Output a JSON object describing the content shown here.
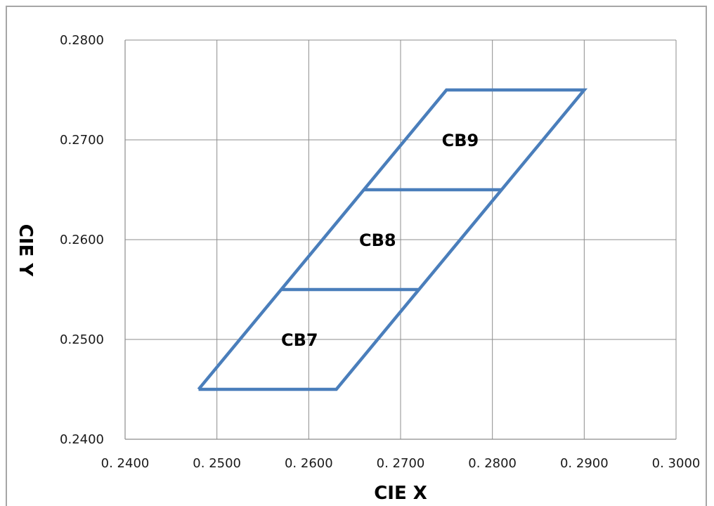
{
  "chart_data": {
    "type": "line",
    "xlabel": "CIE X",
    "ylabel": "CIE Y",
    "xlim": [
      0.24,
      0.3
    ],
    "ylim": [
      0.24,
      0.28
    ],
    "x_ticks": [
      0.24,
      0.25,
      0.26,
      0.27,
      0.28,
      0.29,
      0.3
    ],
    "x_tick_labels": [
      "0.2400",
      "0.2500",
      "0.2600",
      "0.2700",
      "0.2800",
      "0.2900",
      "0.3000"
    ],
    "y_ticks": [
      0.24,
      0.25,
      0.26,
      0.27,
      0.28
    ],
    "y_tick_labels": [
      "0.2400",
      "0.2500",
      "0.2600",
      "0.2700",
      "0.2800"
    ],
    "grid": true,
    "line_color": "#4a7ebb",
    "series": [
      {
        "points": [
          [
            0.248,
            0.245
          ],
          [
            0.263,
            0.245
          ],
          [
            0.29,
            0.275
          ],
          [
            0.275,
            0.275
          ],
          [
            0.248,
            0.245
          ]
        ]
      },
      {
        "points": [
          [
            0.257,
            0.255
          ],
          [
            0.272,
            0.255
          ]
        ]
      },
      {
        "points": [
          [
            0.266,
            0.265
          ],
          [
            0.281,
            0.265
          ]
        ]
      }
    ],
    "annotations": [
      {
        "text": "CB9",
        "x": 0.2765,
        "y": 0.27
      },
      {
        "text": "CB8",
        "x": 0.2675,
        "y": 0.26
      },
      {
        "text": "CB7",
        "x": 0.259,
        "y": 0.25
      }
    ]
  }
}
